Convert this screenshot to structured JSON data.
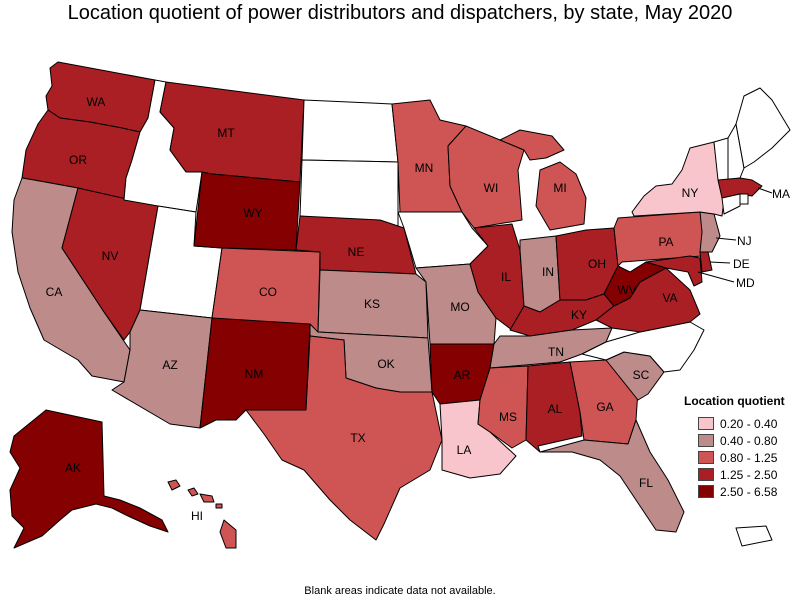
{
  "title": "Location quotient of power distributors and dispatchers, by state, May 2020",
  "footnote": "Blank areas indicate data not available.",
  "legend": {
    "title": "Location quotient",
    "items": [
      {
        "label": "0.20 - 0.40",
        "color": "#f9c5cc"
      },
      {
        "label": "0.40 - 0.80",
        "color": "#bc8b8a"
      },
      {
        "label": "0.80 - 1.25",
        "color": "#cf5555"
      },
      {
        "label": "1.25 - 2.50",
        "color": "#a91f23"
      },
      {
        "label": "2.50 - 6.58",
        "color": "#850000"
      }
    ]
  },
  "colors": {
    "no_data": "#ffffff",
    "border": "#000000"
  },
  "chart_data": {
    "type": "choropleth",
    "classes": [
      "0.20 - 0.40",
      "0.40 - 0.80",
      "0.80 - 1.25",
      "1.25 - 2.50",
      "2.50 - 6.58"
    ],
    "states": {
      "WA": "1.25 - 2.50",
      "OR": "1.25 - 2.50",
      "CA": "0.40 - 0.80",
      "NV": "1.25 - 2.50",
      "AZ": "0.40 - 0.80",
      "MT": "1.25 - 2.50",
      "WY": "2.50 - 6.58",
      "CO": "0.80 - 1.25",
      "NM": "2.50 - 6.58",
      "NE": "1.25 - 2.50",
      "KS": "0.40 - 0.80",
      "OK": "0.40 - 0.80",
      "TX": "0.80 - 1.25",
      "MN": "0.80 - 1.25",
      "MO": "0.40 - 0.80",
      "AR": "2.50 - 6.58",
      "LA": "0.20 - 0.40",
      "WI": "0.80 - 1.25",
      "IL": "1.25 - 2.50",
      "MI": "0.80 - 1.25",
      "IN": "0.40 - 0.80",
      "OH": "1.25 - 2.50",
      "KY": "1.25 - 2.50",
      "TN": "0.40 - 0.80",
      "MS": "0.80 - 1.25",
      "AL": "1.25 - 2.50",
      "GA": "0.80 - 1.25",
      "FL": "0.40 - 0.80",
      "SC": "0.40 - 0.80",
      "NC": null,
      "VA": "1.25 - 2.50",
      "WV": "2.50 - 6.58",
      "PA": "0.80 - 1.25",
      "NY": "0.20 - 0.40",
      "NJ": "0.40 - 0.80",
      "DE": "1.25 - 2.50",
      "MD": "1.25 - 2.50",
      "MA": "1.25 - 2.50",
      "AK": "2.50 - 6.58",
      "HI": "0.80 - 1.25",
      "ID": null,
      "UT": null,
      "ND": null,
      "SD": null,
      "IA": null,
      "ME": null,
      "NH": null,
      "VT": null,
      "CT": null,
      "RI": null,
      "PR": null
    }
  }
}
